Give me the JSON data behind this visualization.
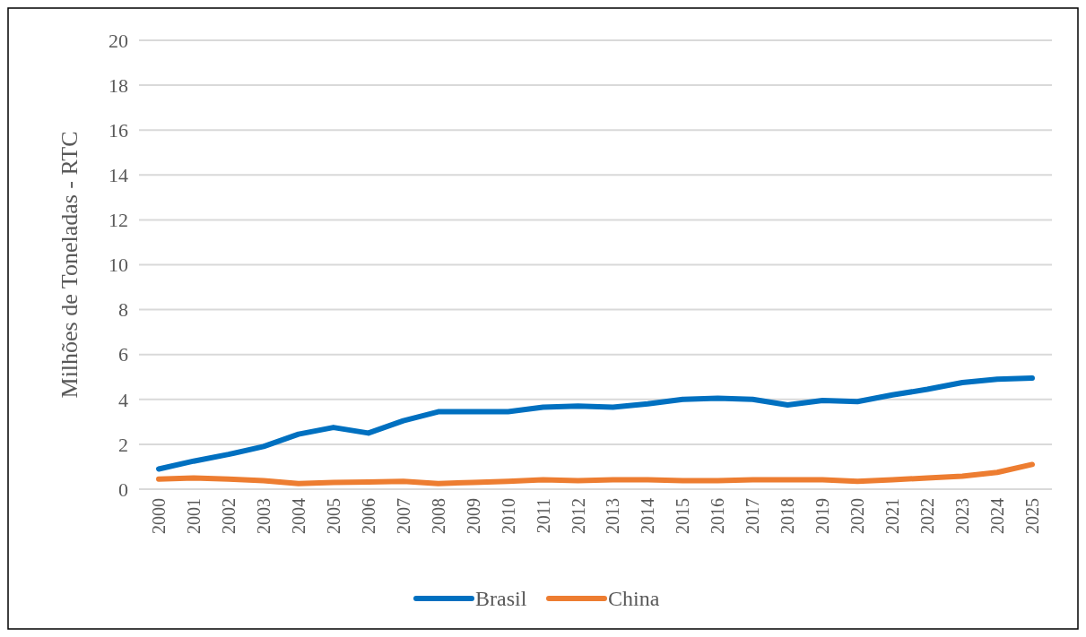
{
  "chart_data": {
    "type": "line",
    "ylabel": "Milhões de Toneladas - RTC",
    "categories": [
      "2000",
      "2001",
      "2002",
      "2003",
      "2004",
      "2005",
      "2006",
      "2007",
      "2008",
      "2009",
      "2010",
      "2011",
      "2012",
      "2013",
      "2014",
      "2015",
      "2016",
      "2017",
      "2018",
      "2019",
      "2020",
      "2021",
      "2022",
      "2023",
      "2024",
      "2025"
    ],
    "series": [
      {
        "name": "Brasil",
        "color": "#0070c0",
        "values": [
          0.9,
          1.25,
          1.55,
          1.9,
          2.45,
          2.75,
          2.5,
          3.05,
          3.45,
          3.45,
          3.45,
          3.65,
          3.7,
          3.65,
          3.8,
          4.0,
          4.05,
          4.0,
          3.75,
          3.95,
          3.9,
          4.2,
          4.45,
          4.75,
          4.9,
          4.95
        ]
      },
      {
        "name": "China",
        "color": "#ed7d31",
        "values": [
          0.45,
          0.5,
          0.45,
          0.38,
          0.25,
          0.3,
          0.32,
          0.35,
          0.25,
          0.3,
          0.35,
          0.42,
          0.38,
          0.42,
          0.42,
          0.38,
          0.38,
          0.42,
          0.42,
          0.42,
          0.35,
          0.42,
          0.5,
          0.58,
          0.75,
          1.1
        ]
      }
    ],
    "ylim": [
      0,
      20
    ],
    "yticks": [
      0,
      2,
      4,
      6,
      8,
      10,
      12,
      14,
      16,
      18,
      20
    ],
    "grid": "y",
    "legend": "bottom",
    "line_style": "solid",
    "marker": "none"
  }
}
